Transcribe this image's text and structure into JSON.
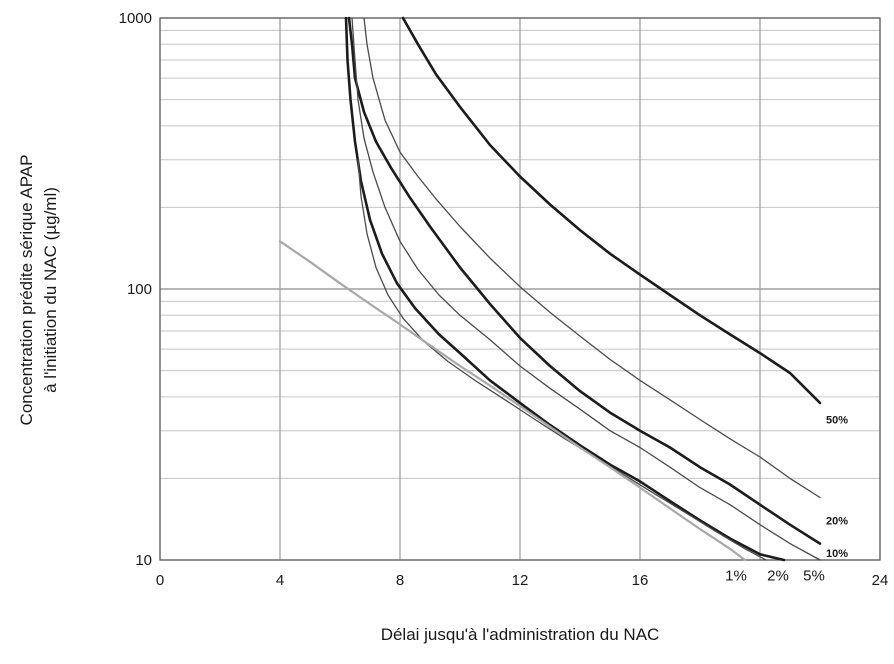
{
  "chart_data": {
    "type": "line",
    "title": "",
    "xlabel": "Délai jusqu'à l'administration du NAC",
    "ylabel_lines": [
      "Concentration prédite sérique APAP",
      "à l'initiation du NAC (µg/ml)"
    ],
    "y_scale": "log",
    "xlim": [
      0,
      24
    ],
    "ylim": [
      10,
      1000
    ],
    "x_ticks": [
      0,
      4,
      8,
      12,
      16,
      20,
      24
    ],
    "x_tick_labels": [
      "0",
      "4",
      "8",
      "12",
      "16",
      "",
      "24"
    ],
    "y_ticks": [
      10,
      100,
      1000
    ],
    "y_tick_labels": [
      "10",
      "100",
      "1000"
    ],
    "grid": "on",
    "series": [
      {
        "name": "50%",
        "style": "thick",
        "x": [
          8.1,
          8.6,
          9.2,
          10,
          11,
          12,
          13,
          14,
          15,
          16,
          17,
          18,
          19,
          20,
          21,
          22
        ],
        "y": [
          1000,
          800,
          620,
          470,
          340,
          260,
          205,
          165,
          135,
          113,
          95,
          80,
          68,
          58,
          49,
          38
        ]
      },
      {
        "name": "",
        "style": "thin",
        "x": [
          6.8,
          6.9,
          7.1,
          7.5,
          8,
          8.6,
          9.2,
          10,
          11,
          12,
          13,
          14,
          15,
          16,
          17,
          18,
          19,
          20,
          21,
          22
        ],
        "y": [
          1000,
          800,
          600,
          420,
          320,
          260,
          215,
          170,
          130,
          102,
          82,
          67,
          55,
          46,
          39,
          33,
          28,
          24,
          20,
          17
        ]
      },
      {
        "name": "20%",
        "style": "thick",
        "x": [
          6.3,
          6.4,
          6.5,
          6.8,
          7.2,
          7.7,
          8.3,
          9,
          10,
          11,
          12,
          13,
          14,
          15,
          16,
          17,
          18,
          19,
          20,
          21,
          22
        ],
        "y": [
          1000,
          800,
          600,
          450,
          350,
          280,
          220,
          170,
          120,
          88,
          66,
          52,
          42,
          35,
          30,
          26,
          22,
          19,
          16,
          13.5,
          11.5
        ]
      },
      {
        "name": "10%",
        "style": "thin",
        "x": [
          6.4,
          6.5,
          6.6,
          6.8,
          7.1,
          7.5,
          8,
          8.6,
          9.3,
          10,
          11,
          12,
          13,
          14,
          15,
          16,
          17,
          18,
          19,
          20,
          21,
          22
        ],
        "y": [
          1000,
          700,
          500,
          360,
          270,
          200,
          150,
          118,
          95,
          80,
          65,
          52,
          43,
          36,
          30,
          26,
          22,
          18.5,
          16,
          13.5,
          11.5,
          10
        ]
      },
      {
        "name": "5%",
        "style": "thick",
        "x": [
          6.2,
          6.25,
          6.35,
          6.5,
          6.7,
          7,
          7.4,
          7.9,
          8.5,
          9.3,
          10,
          11,
          12,
          13,
          14,
          15,
          16,
          17,
          18,
          19,
          20,
          20.8
        ],
        "y": [
          1000,
          700,
          500,
          350,
          250,
          180,
          135,
          105,
          85,
          68,
          58,
          46,
          38,
          31.5,
          26.5,
          22.5,
          19.5,
          16.5,
          14,
          12,
          10.5,
          10
        ]
      },
      {
        "name": "2%",
        "style": "thin",
        "x": [
          6.6,
          6.7,
          6.9,
          7.2,
          7.6,
          8.1,
          8.8,
          9.6,
          10.5,
          11.5,
          12.5,
          13.5,
          14.5,
          15.5,
          16.5,
          17.5,
          18.5,
          19.5,
          20.2
        ],
        "y": [
          300,
          220,
          160,
          120,
          95,
          78,
          64,
          54,
          46,
          39,
          33,
          28,
          24,
          20.5,
          17.5,
          15,
          12.8,
          11,
          10
        ]
      },
      {
        "name": "1%",
        "style": "light",
        "x": [
          4,
          5,
          6,
          7,
          8,
          9,
          10,
          11,
          12,
          13,
          14,
          15,
          16,
          17,
          18,
          19,
          19.5
        ],
        "y": [
          150,
          126,
          105,
          88,
          74,
          62,
          52,
          44,
          37,
          31,
          26,
          22,
          18.5,
          15.5,
          13,
          11,
          10
        ]
      }
    ],
    "curve_labels": [
      {
        "text": "50%",
        "x": 22.2,
        "y": 33
      },
      {
        "text": "20%",
        "x": 22.2,
        "y": 14
      },
      {
        "text": "10%",
        "x": 22.2,
        "y": 10.6
      },
      {
        "text": "1%",
        "x": 19.2,
        "y": 8.7
      },
      {
        "text": "2%",
        "x": 20.6,
        "y": 8.7
      },
      {
        "text": "5%",
        "x": 21.8,
        "y": 8.7
      }
    ],
    "colors": {
      "thick": "#1c1c1c",
      "thin": "#4a4a4a",
      "light": "#a8a8a8",
      "grid": "#9a9a9a",
      "grid_minor": "#c6c6c6"
    }
  }
}
